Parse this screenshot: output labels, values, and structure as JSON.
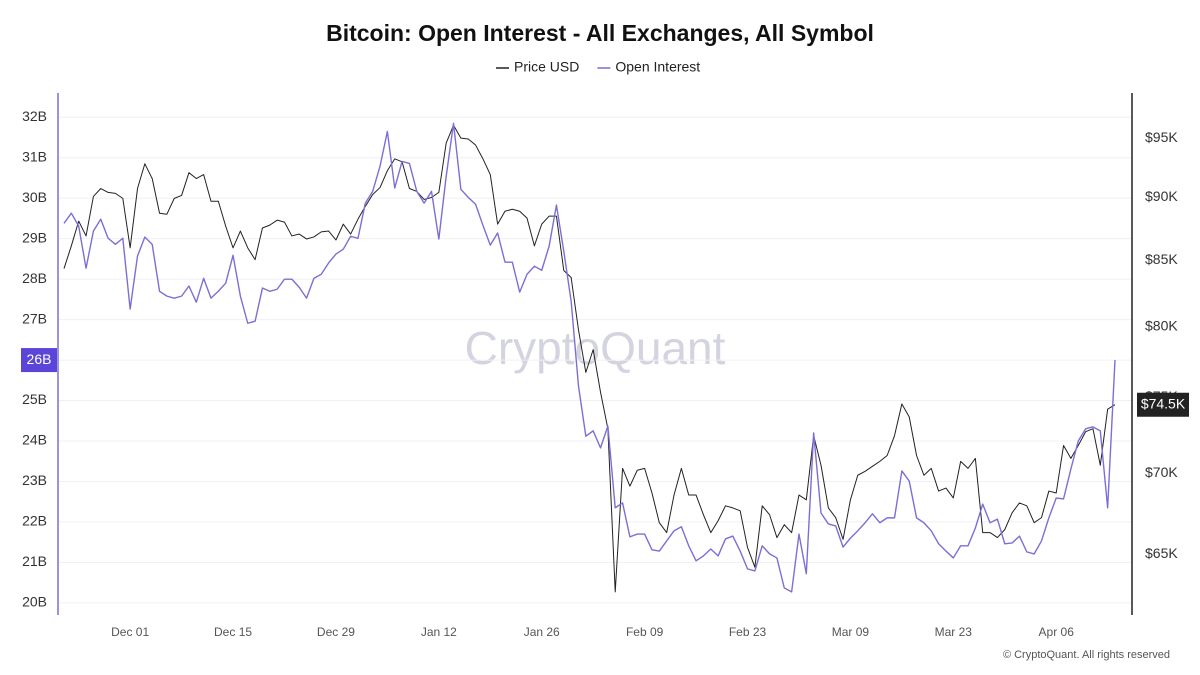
{
  "chart_data": {
    "type": "line",
    "title": "Bitcoin: Open Interest - All Exchanges, All Symbol",
    "watermark": "CryptoQuant",
    "source": "© CryptoQuant. All rights reserved",
    "grid": true,
    "legend": "top",
    "y2log": true,
    "categories": [
      "Nov 22",
      "Nov 23",
      "Nov 24",
      "Nov 25",
      "Nov 26",
      "Nov 27",
      "Nov 28",
      "Nov 29",
      "Nov 30",
      "Dec 01",
      "Dec 02",
      "Dec 03",
      "Dec 04",
      "Dec 05",
      "Dec 06",
      "Dec 07",
      "Dec 08",
      "Dec 09",
      "Dec 10",
      "Dec 11",
      "Dec 12",
      "Dec 13",
      "Dec 14",
      "Dec 15",
      "Dec 16",
      "Dec 17",
      "Dec 18",
      "Dec 19",
      "Dec 20",
      "Dec 21",
      "Dec 22",
      "Dec 23",
      "Dec 24",
      "Dec 25",
      "Dec 26",
      "Dec 27",
      "Dec 28",
      "Dec 29",
      "Dec 30",
      "Dec 31",
      "Jan 01",
      "Jan 02",
      "Jan 03",
      "Jan 04",
      "Jan 05",
      "Jan 06",
      "Jan 07",
      "Jan 08",
      "Jan 09",
      "Jan 10",
      "Jan 11",
      "Jan 12",
      "Jan 13",
      "Jan 14",
      "Jan 15",
      "Jan 16",
      "Jan 17",
      "Jan 18",
      "Jan 19",
      "Jan 20",
      "Jan 21",
      "Jan 22",
      "Jan 23",
      "Jan 24",
      "Jan 25",
      "Jan 26",
      "Jan 27",
      "Jan 28",
      "Jan 29",
      "Jan 30",
      "Jan 31",
      "Feb 01",
      "Feb 02",
      "Feb 03",
      "Feb 04",
      "Feb 05",
      "Feb 06",
      "Feb 07",
      "Feb 08",
      "Feb 09",
      "Feb 10",
      "Feb 11",
      "Feb 12",
      "Feb 13",
      "Feb 14",
      "Feb 15",
      "Feb 16",
      "Feb 17",
      "Feb 18",
      "Feb 19",
      "Feb 20",
      "Feb 21",
      "Feb 22",
      "Feb 23",
      "Feb 24",
      "Feb 25",
      "Feb 26",
      "Feb 27",
      "Feb 28",
      "Mar 01",
      "Mar 02",
      "Mar 03",
      "Mar 04",
      "Mar 05",
      "Mar 06",
      "Mar 07",
      "Mar 08",
      "Mar 09",
      "Mar 10",
      "Mar 11",
      "Mar 12",
      "Mar 13",
      "Mar 14",
      "Mar 15",
      "Mar 16",
      "Mar 17",
      "Mar 18",
      "Mar 19",
      "Mar 20",
      "Mar 21",
      "Mar 22",
      "Mar 23",
      "Mar 24",
      "Mar 25",
      "Mar 26",
      "Mar 27",
      "Mar 28",
      "Mar 29",
      "Mar 30",
      "Mar 31",
      "Apr 01",
      "Apr 02",
      "Apr 03",
      "Apr 04",
      "Apr 05",
      "Apr 06",
      "Apr 07",
      "Apr 08",
      "Apr 09",
      "Apr 10",
      "Apr 11",
      "Apr 12",
      "Apr 13",
      "Apr 14"
    ],
    "xticks": [
      "Dec 01",
      "Dec 15",
      "Dec 29",
      "Jan 12",
      "Jan 26",
      "Feb 09",
      "Feb 23",
      "Mar 09",
      "Mar 23",
      "Apr 06"
    ],
    "ylim": [
      19.7,
      32.6
    ],
    "yticks": [
      {
        "value": 20,
        "label": "20B"
      },
      {
        "value": 21,
        "label": "21B"
      },
      {
        "value": 22,
        "label": "22B"
      },
      {
        "value": 23,
        "label": "23B"
      },
      {
        "value": 24,
        "label": "24B"
      },
      {
        "value": 25,
        "label": "25B"
      },
      {
        "value": 26,
        "label": "26B"
      },
      {
        "value": 27,
        "label": "27B"
      },
      {
        "value": 28,
        "label": "28B"
      },
      {
        "value": 29,
        "label": "29B"
      },
      {
        "value": 30,
        "label": "30B"
      },
      {
        "value": 31,
        "label": "31B"
      },
      {
        "value": 32,
        "label": "32B"
      }
    ],
    "y2lim": [
      61.5,
      99
    ],
    "y2ticks": [
      {
        "value": 65,
        "label": "$65K"
      },
      {
        "value": 70,
        "label": "$70K"
      },
      {
        "value": 75,
        "label": "$75K"
      },
      {
        "value": 80,
        "label": "$80K"
      },
      {
        "value": 85,
        "label": "$85K"
      },
      {
        "value": 90,
        "label": "$90K"
      },
      {
        "value": 95,
        "label": "$95K"
      }
    ],
    "series": [
      {
        "name": "Price USD",
        "color": "#222222",
        "axis": "y2",
        "end_label": "$74.5K",
        "values": [
          84.35,
          86.12,
          88.08,
          86.9,
          90.09,
          90.74,
          90.42,
          90.34,
          89.93,
          85.96,
          90.74,
          92.81,
          91.57,
          88.72,
          88.64,
          89.93,
          90.17,
          92.06,
          91.57,
          91.9,
          89.69,
          89.69,
          87.68,
          85.96,
          87.29,
          85.96,
          85.04,
          87.53,
          87.76,
          88.16,
          88.0,
          86.9,
          87.05,
          86.66,
          86.82,
          87.22,
          87.29,
          86.58,
          87.84,
          87.05,
          88.24,
          89.28,
          90.25,
          90.82,
          92.23,
          93.23,
          92.98,
          90.74,
          90.5,
          89.84,
          90.0,
          90.42,
          94.58,
          96.13,
          95.01,
          94.93,
          94.41,
          93.23,
          91.9,
          87.84,
          88.88,
          89.04,
          88.88,
          88.32,
          86.12,
          87.84,
          88.48,
          88.48,
          84.2,
          83.67,
          79.77,
          76.73,
          78.34,
          75.36,
          72.89,
          62.81,
          70.3,
          69.17,
          70.18,
          70.3,
          68.74,
          66.9,
          66.3,
          68.61,
          70.3,
          68.61,
          68.61,
          67.39,
          66.3,
          67.02,
          67.94,
          67.81,
          67.63,
          65.41,
          64.24,
          67.94,
          67.39,
          66.0,
          66.78,
          66.3,
          68.61,
          68.31,
          72.43,
          70.5,
          67.81,
          67.21,
          65.89,
          68.31,
          69.86,
          70.11,
          70.43,
          70.75,
          71.13,
          72.43,
          74.55,
          73.68,
          71.13,
          69.86,
          70.3,
          68.86,
          69.05,
          68.43,
          70.75,
          70.3,
          70.94,
          66.3,
          66.3,
          66.0,
          66.48,
          67.51,
          68.12,
          67.94,
          66.9,
          67.21,
          68.86,
          68.74,
          71.78,
          70.94,
          71.78,
          72.69,
          72.89,
          70.5,
          74.2,
          74.5
        ]
      },
      {
        "name": "Open Interest",
        "color": "#7b6fd6",
        "axis": "y",
        "end_label": "26B",
        "values": [
          29.38,
          29.63,
          29.31,
          28.27,
          29.19,
          29.48,
          29.01,
          28.86,
          29.01,
          27.26,
          28.57,
          29.04,
          28.86,
          27.7,
          27.58,
          27.53,
          27.58,
          27.83,
          27.43,
          28.02,
          27.53,
          27.7,
          27.9,
          28.59,
          27.58,
          26.91,
          26.96,
          27.78,
          27.7,
          27.75,
          28.0,
          28.0,
          27.8,
          27.53,
          28.02,
          28.12,
          28.4,
          28.62,
          28.74,
          29.06,
          29.01,
          29.88,
          30.17,
          30.79,
          31.65,
          30.25,
          30.91,
          30.86,
          30.17,
          29.88,
          30.17,
          28.99,
          30.54,
          31.85,
          30.22,
          30.02,
          29.85,
          29.33,
          28.84,
          29.14,
          28.42,
          28.42,
          27.68,
          28.12,
          28.32,
          28.22,
          28.81,
          29.83,
          28.69,
          27.46,
          25.36,
          24.12,
          24.25,
          23.83,
          24.37,
          22.35,
          22.47,
          21.63,
          21.7,
          21.7,
          21.31,
          21.28,
          21.53,
          21.78,
          21.88,
          21.41,
          21.04,
          21.16,
          21.33,
          21.16,
          21.58,
          21.65,
          21.28,
          20.84,
          20.79,
          21.41,
          21.21,
          21.11,
          20.37,
          20.27,
          21.7,
          20.72,
          24.2,
          22.22,
          21.95,
          21.9,
          21.38,
          21.6,
          21.78,
          21.98,
          22.2,
          21.98,
          22.1,
          22.1,
          23.26,
          23.01,
          22.1,
          21.98,
          21.78,
          21.46,
          21.28,
          21.11,
          21.41,
          21.41,
          21.85,
          22.44,
          21.98,
          22.07,
          21.46,
          21.48,
          21.65,
          21.26,
          21.21,
          21.53,
          22.1,
          22.59,
          22.57,
          23.31,
          24.0,
          24.3,
          24.35,
          24.25,
          22.35,
          26.0
        ]
      }
    ]
  }
}
